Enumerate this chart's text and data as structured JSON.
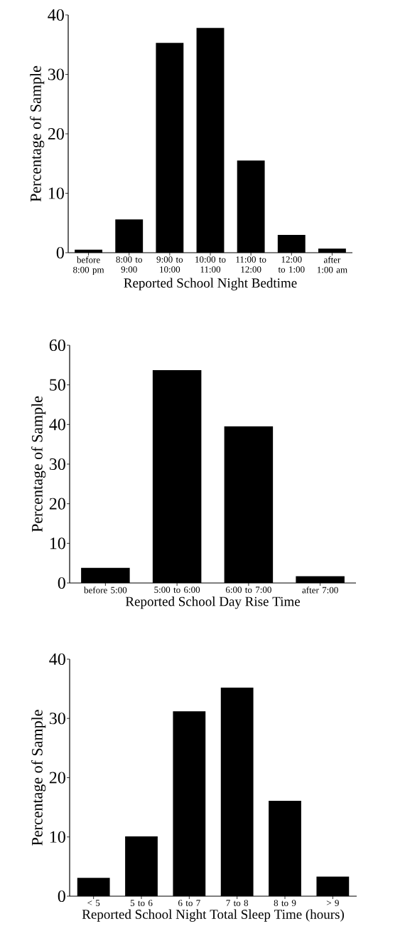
{
  "chart_data": [
    {
      "type": "bar",
      "xlabel": "Reported School Night Bedtime",
      "ylabel": "Percentage of Sample",
      "categories": [
        "before 8:00 pm",
        "8:00 to 9:00",
        "9:00 to 10:00",
        "10:00 to 11:00",
        "11:00 to 12:00",
        "12:00 to 1:00",
        "after 1:00 am"
      ],
      "values": [
        0.5,
        5.6,
        35.3,
        37.8,
        15.5,
        3.0,
        0.7
      ],
      "color": "#000000",
      "ylim": [
        0,
        40
      ],
      "yticks": [
        0,
        10,
        20,
        30,
        40
      ]
    },
    {
      "type": "bar",
      "xlabel": "Reported School Day Rise Time",
      "ylabel": "Percentage of Sample",
      "categories": [
        "before 5:00",
        "5:00 to 6:00",
        "6:00 to 7:00",
        "after 7:00"
      ],
      "values": [
        3.8,
        53.7,
        39.5,
        1.7
      ],
      "color": "#000000",
      "ylim": [
        0,
        60
      ],
      "yticks": [
        0,
        10,
        20,
        30,
        40,
        50,
        60
      ]
    },
    {
      "type": "bar",
      "xlabel": "Reported School Night Total Sleep Time (hours)",
      "ylabel": "Percentage of Sample",
      "categories": [
        "< 5",
        "5 to 6",
        "6 to 7",
        "7 to 8",
        "8 to 9",
        "> 9"
      ],
      "values": [
        3.1,
        10.1,
        31.2,
        35.2,
        16.1,
        3.3
      ],
      "color": "#000000",
      "ylim": [
        0,
        40
      ],
      "yticks": [
        0,
        10,
        20,
        30,
        40
      ]
    }
  ]
}
